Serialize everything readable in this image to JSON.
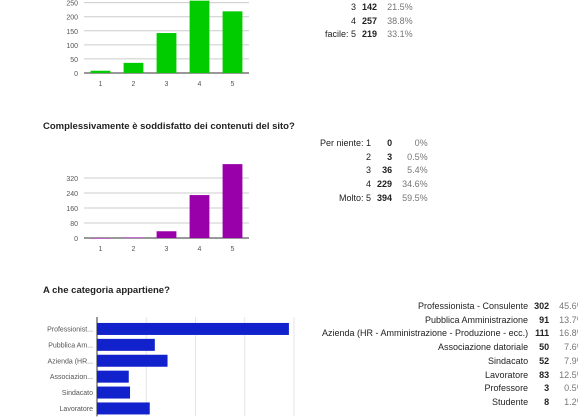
{
  "charts": [
    {
      "key": "q1",
      "title": "",
      "type": "bar",
      "orientation": "vertical",
      "color": "#00cc00",
      "categories": [
        "1",
        "2",
        "3",
        "4",
        "5"
      ],
      "values": [
        8,
        36,
        142,
        257,
        219
      ],
      "yticks": [
        0,
        50,
        100,
        150,
        200,
        250
      ],
      "ylim": [
        0,
        270
      ],
      "grid": true,
      "table": [
        {
          "label": "3",
          "count": "142",
          "pct": "21.5%"
        },
        {
          "label": "4",
          "count": "257",
          "pct": "38.8%"
        },
        {
          "label": "facile: 5",
          "count": "219",
          "pct": "33.1%"
        }
      ]
    },
    {
      "key": "q2",
      "title": "Complessivamente è soddisfatto dei contenuti del sito?",
      "type": "bar",
      "orientation": "vertical",
      "color": "#9900aa",
      "categories": [
        "1",
        "2",
        "3",
        "4",
        "5"
      ],
      "values": [
        0,
        3,
        36,
        229,
        394
      ],
      "yticks": [
        0,
        80,
        160,
        240,
        320
      ],
      "ylim": [
        0,
        400
      ],
      "grid": true,
      "table": [
        {
          "label": "Per niente: 1",
          "count": "0",
          "pct": "0%"
        },
        {
          "label": "2",
          "count": "3",
          "pct": "0.5%"
        },
        {
          "label": "3",
          "count": "36",
          "pct": "5.4%"
        },
        {
          "label": "4",
          "count": "229",
          "pct": "34.6%"
        },
        {
          "label": "Molto: 5",
          "count": "394",
          "pct": "59.5%"
        }
      ]
    },
    {
      "key": "q3",
      "title": "A che categoria appartiene?",
      "type": "bar",
      "orientation": "horizontal",
      "color": "#1122cc",
      "categories": [
        "Professionist...",
        "Pubblica Am...",
        "Azienda (HR...",
        "Associazion...",
        "Sindacato",
        "Lavoratore"
      ],
      "values": [
        302,
        91,
        111,
        50,
        52,
        83
      ],
      "xlim": [
        0,
        310
      ],
      "grid": true,
      "table": [
        {
          "label": "Professionista - Consulente",
          "count": "302",
          "pct": "45.6%"
        },
        {
          "label": "Pubblica Amministrazione",
          "count": "91",
          "pct": "13.7%"
        },
        {
          "label": "Azienda (HR - Amministrazione - Produzione - ecc.)",
          "count": "111",
          "pct": "16.8%"
        },
        {
          "label": "Associazione datoriale",
          "count": "50",
          "pct": "7.6%"
        },
        {
          "label": "Sindacato",
          "count": "52",
          "pct": "7.9%"
        },
        {
          "label": "Lavoratore",
          "count": "83",
          "pct": "12.5%"
        },
        {
          "label": "Professore",
          "count": "3",
          "pct": "0.5%"
        },
        {
          "label": "Studente",
          "count": "8",
          "pct": "1.2%"
        }
      ]
    }
  ]
}
